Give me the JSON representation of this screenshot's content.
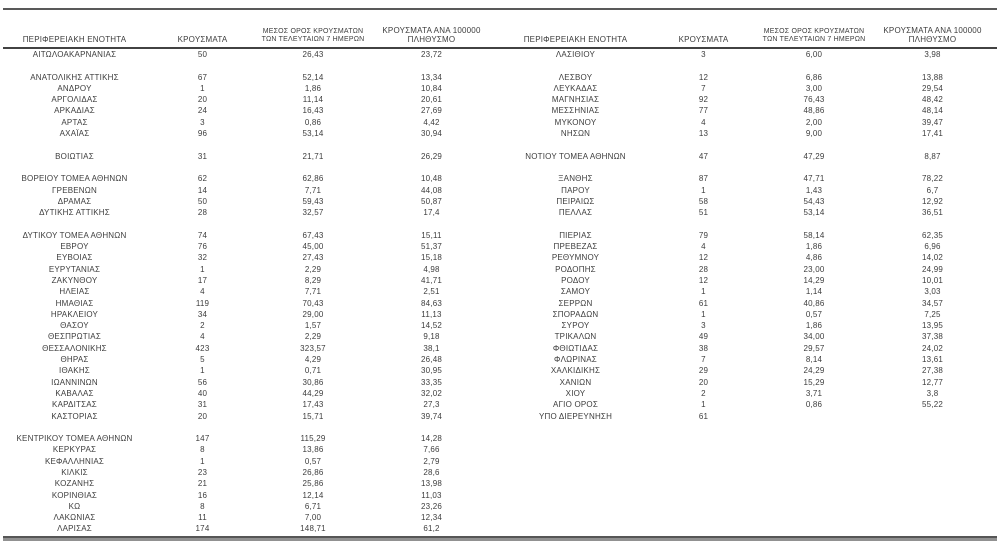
{
  "table": {
    "columns": [
      "ΠΕΡΙΦΕΡΕΙΑΚΗ ΕΝΟΤΗΤΑ",
      "ΚΡΟΥΣΜΑΤΑ",
      "ΜΕΣΟΣ ΟΡΟΣ ΚΡΟΥΣΜΑΤΩΝ ΤΩΝ ΤΕΛΕΥΤΑΙΩΝ 7 ΗΜΕΡΩΝ",
      "ΚΡΟΥΣΜΑΤΑ ΑΝΑ 100000 ΠΛΗΘΥΣΜΟ"
    ],
    "left_rows": [
      [
        "ΑΙΤΩΛΟΑΚΑΡΝΑΝΙΑΣ",
        "50",
        "26,43",
        "23,72"
      ],
      null,
      [
        "ΑΝΑΤΟΛΙΚΗΣ ΑΤΤΙΚΗΣ",
        "67",
        "52,14",
        "13,34"
      ],
      [
        "ΑΝΔΡΟΥ",
        "1",
        "1,86",
        "10,84"
      ],
      [
        "ΑΡΓΟΛΙΔΑΣ",
        "20",
        "11,14",
        "20,61"
      ],
      [
        "ΑΡΚΑΔΙΑΣ",
        "24",
        "16,43",
        "27,69"
      ],
      [
        "ΑΡΤΑΣ",
        "3",
        "0,86",
        "4,42"
      ],
      [
        "ΑΧΑΪΑΣ",
        "96",
        "53,14",
        "30,94"
      ],
      null,
      [
        "ΒΟΙΩΤΙΑΣ",
        "31",
        "21,71",
        "26,29"
      ],
      null,
      [
        "ΒΟΡΕΙΟΥ ΤΟΜΕΑ ΑΘΗΝΩΝ",
        "62",
        "62,86",
        "10,48"
      ],
      [
        "ΓΡΕΒΕΝΩΝ",
        "14",
        "7,71",
        "44,08"
      ],
      [
        "ΔΡΑΜΑΣ",
        "50",
        "59,43",
        "50,87"
      ],
      [
        "ΔΥΤΙΚΗΣ ΑΤΤΙΚΗΣ",
        "28",
        "32,57",
        "17,4"
      ],
      null,
      [
        "ΔΥΤΙΚΟΥ ΤΟΜΕΑ ΑΘΗΝΩΝ",
        "74",
        "67,43",
        "15,11"
      ],
      [
        "ΕΒΡΟΥ",
        "76",
        "45,00",
        "51,37"
      ],
      [
        "ΕΥΒΟΙΑΣ",
        "32",
        "27,43",
        "15,18"
      ],
      [
        "ΕΥΡΥΤΑΝΙΑΣ",
        "1",
        "2,29",
        "4,98"
      ],
      [
        "ΖΑΚΥΝΘΟΥ",
        "17",
        "8,29",
        "41,71"
      ],
      [
        "ΗΛΕΙΑΣ",
        "4",
        "7,71",
        "2,51"
      ],
      [
        "ΗΜΑΘΙΑΣ",
        "119",
        "70,43",
        "84,63"
      ],
      [
        "ΗΡΑΚΛΕΙΟΥ",
        "34",
        "29,00",
        "11,13"
      ],
      [
        "ΘΑΣΟΥ",
        "2",
        "1,57",
        "14,52"
      ],
      [
        "ΘΕΣΠΡΩΤΙΑΣ",
        "4",
        "2,29",
        "9,18"
      ],
      [
        "ΘΕΣΣΑΛΟΝΙΚΗΣ",
        "423",
        "323,57",
        "38,1"
      ],
      [
        "ΘΗΡΑΣ",
        "5",
        "4,29",
        "26,48"
      ],
      [
        "ΙΘΑΚΗΣ",
        "1",
        "0,71",
        "30,95"
      ],
      [
        "ΙΩΑΝΝΙΝΩΝ",
        "56",
        "30,86",
        "33,35"
      ],
      [
        "ΚΑΒΑΛΑΣ",
        "40",
        "44,29",
        "32,02"
      ],
      [
        "ΚΑΡΔΙΤΣΑΣ",
        "31",
        "17,43",
        "27,3"
      ],
      [
        "ΚΑΣΤΟΡΙΑΣ",
        "20",
        "15,71",
        "39,74"
      ],
      null,
      [
        "ΚΕΝΤΡΙΚΟΥ ΤΟΜΕΑ ΑΘΗΝΩΝ",
        "147",
        "115,29",
        "14,28"
      ],
      [
        "ΚΕΡΚΥΡΑΣ",
        "8",
        "13,86",
        "7,66"
      ],
      [
        "ΚΕΦΑΛΛΗΝΙΑΣ",
        "1",
        "0,57",
        "2,79"
      ],
      [
        "ΚΙΛΚΙΣ",
        "23",
        "26,86",
        "28,6"
      ],
      [
        "ΚΟΖΑΝΗΣ",
        "21",
        "25,86",
        "13,98"
      ],
      [
        "ΚΟΡΙΝΘΙΑΣ",
        "16",
        "12,14",
        "11,03"
      ],
      [
        "ΚΩ",
        "8",
        "6,71",
        "23,26"
      ],
      [
        "ΛΑΚΩΝΙΑΣ",
        "11",
        "7,00",
        "12,34"
      ],
      [
        "ΛΑΡΙΣΑΣ",
        "174",
        "148,71",
        "61,2"
      ]
    ],
    "right_rows": [
      [
        "ΛΑΣΙΘΙΟΥ",
        "3",
        "6,00",
        "3,98"
      ],
      null,
      [
        "ΛΕΣΒΟΥ",
        "12",
        "6,86",
        "13,88"
      ],
      [
        "ΛΕΥΚΑΔΑΣ",
        "7",
        "3,00",
        "29,54"
      ],
      [
        "ΜΑΓΝΗΣΙΑΣ",
        "92",
        "76,43",
        "48,42"
      ],
      [
        "ΜΕΣΣΗΝΙΑΣ",
        "77",
        "48,86",
        "48,14"
      ],
      [
        "ΜΥΚΟΝΟΥ",
        "4",
        "2,00",
        "39,47"
      ],
      [
        "ΝΗΣΩΝ",
        "13",
        "9,00",
        "17,41"
      ],
      null,
      [
        "ΝΟΤΙΟΥ ΤΟΜΕΑ ΑΘΗΝΩΝ",
        "47",
        "47,29",
        "8,87"
      ],
      null,
      [
        "ΞΑΝΘΗΣ",
        "87",
        "47,71",
        "78,22"
      ],
      [
        "ΠΑΡΟΥ",
        "1",
        "1,43",
        "6,7"
      ],
      [
        "ΠΕΙΡΑΙΩΣ",
        "58",
        "54,43",
        "12,92"
      ],
      [
        "ΠΕΛΛΑΣ",
        "51",
        "53,14",
        "36,51"
      ],
      null,
      [
        "ΠΙΕΡΙΑΣ",
        "79",
        "58,14",
        "62,35"
      ],
      [
        "ΠΡΕΒΕΖΑΣ",
        "4",
        "1,86",
        "6,96"
      ],
      [
        "ΡΕΘΥΜΝΟΥ",
        "12",
        "4,86",
        "14,02"
      ],
      [
        "ΡΟΔΟΠΗΣ",
        "28",
        "23,00",
        "24,99"
      ],
      [
        "ΡΟΔΟΥ",
        "12",
        "14,29",
        "10,01"
      ],
      [
        "ΣΑΜΟΥ",
        "1",
        "1,14",
        "3,03"
      ],
      [
        "ΣΕΡΡΩΝ",
        "61",
        "40,86",
        "34,57"
      ],
      [
        "ΣΠΟΡΑΔΩΝ",
        "1",
        "0,57",
        "7,25"
      ],
      [
        "ΣΥΡΟΥ",
        "3",
        "1,86",
        "13,95"
      ],
      [
        "ΤΡΙΚΑΛΩΝ",
        "49",
        "34,00",
        "37,38"
      ],
      [
        "ΦΘΙΩΤΙΔΑΣ",
        "38",
        "29,57",
        "24,02"
      ],
      [
        "ΦΛΩΡΙΝΑΣ",
        "7",
        "8,14",
        "13,61"
      ],
      [
        "ΧΑΛΚΙΔΙΚΗΣ",
        "29",
        "24,29",
        "27,38"
      ],
      [
        "ΧΑΝΙΩΝ",
        "20",
        "15,29",
        "12,77"
      ],
      [
        "ΧΙΟΥ",
        "2",
        "3,71",
        "3,8"
      ],
      [
        "ΑΓΙΟ ΟΡΟΣ",
        "1",
        "0,86",
        "55,22"
      ],
      [
        "ΥΠΟ ΔΙΕΡΕΥΝΗΣΗ",
        "61",
        "",
        ""
      ],
      null,
      null,
      null,
      null,
      null,
      null,
      null,
      null,
      null,
      null
    ]
  },
  "colors": {
    "text": "#3d3d3d",
    "rule_top": "#595959",
    "rule_header": "#424242",
    "rule_bottom": "#919191"
  }
}
